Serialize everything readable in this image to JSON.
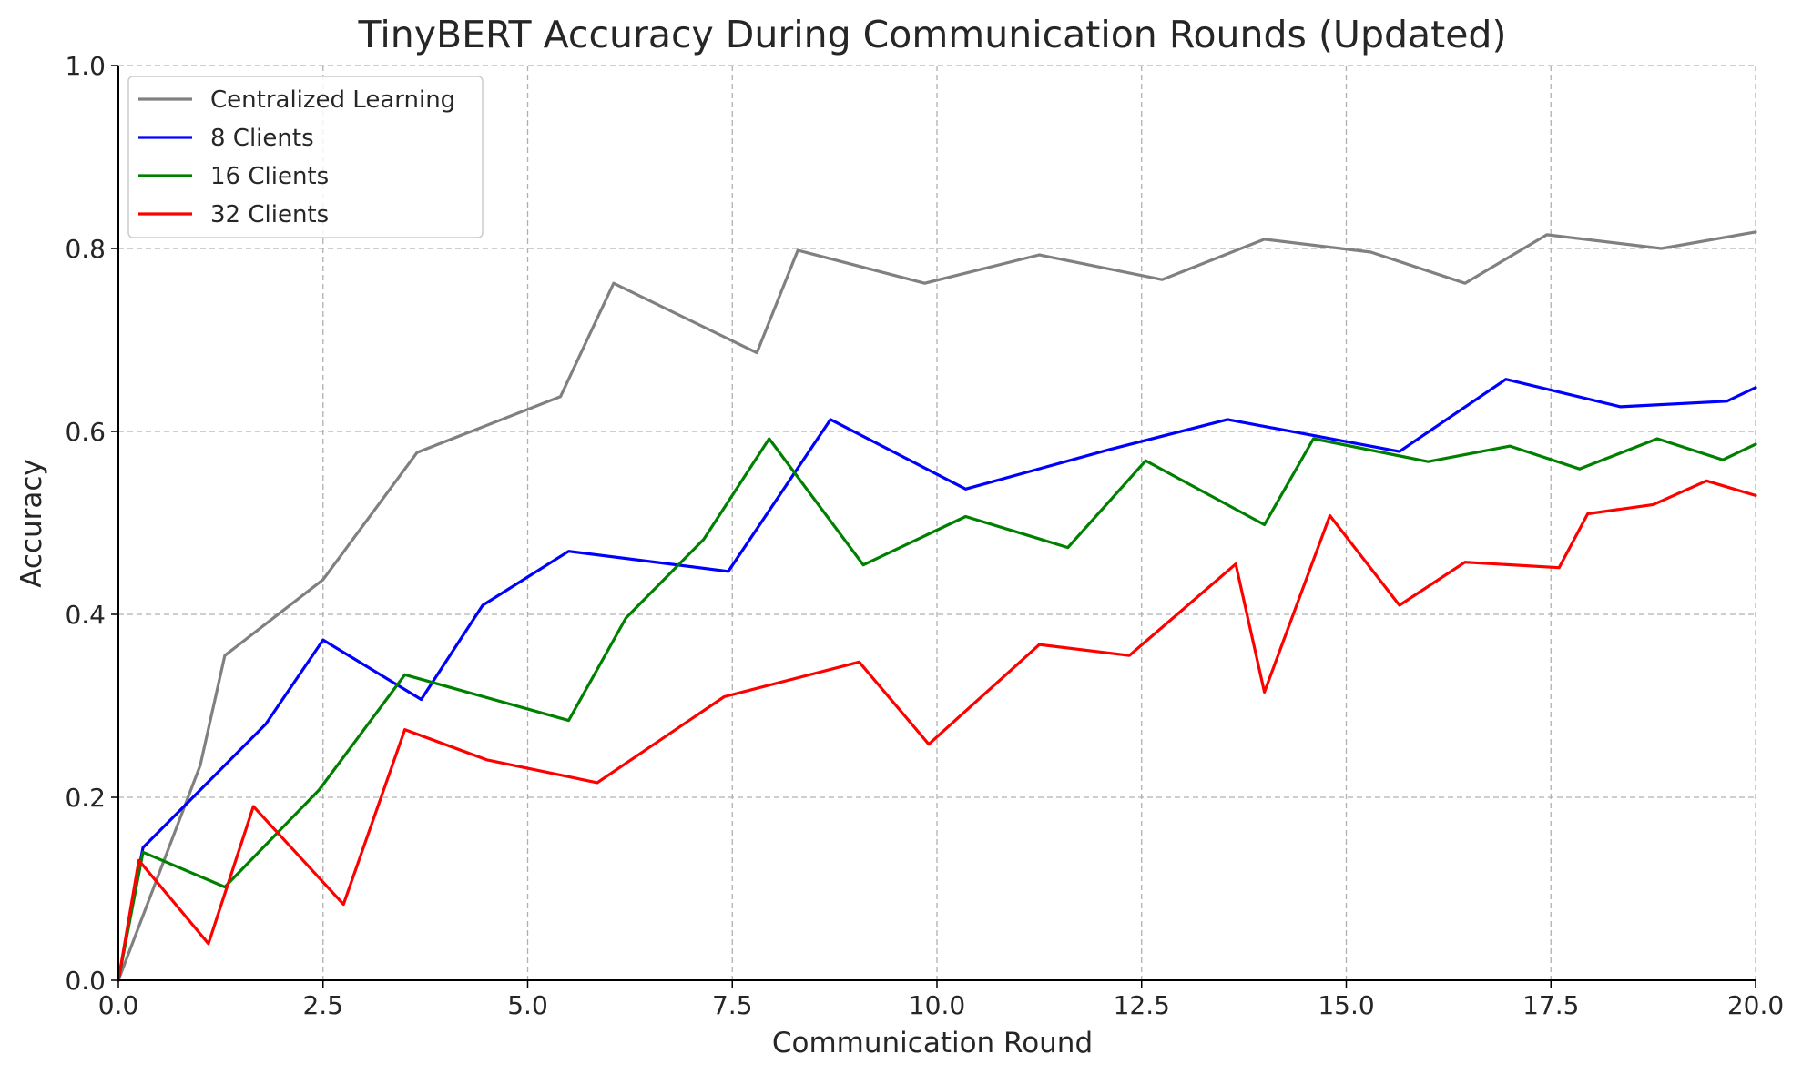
{
  "chart_data": {
    "type": "line",
    "title": "TinyBERT Accuracy During Communication Rounds (Updated)",
    "xlabel": "Communication Round",
    "ylabel": "Accuracy",
    "xlim": [
      0,
      20
    ],
    "ylim": [
      0,
      1
    ],
    "xticks": [
      0,
      2.5,
      5,
      7.5,
      10,
      12.5,
      15,
      17.5,
      20
    ],
    "xtick_labels": [
      "0.0",
      "2.5",
      "5.0",
      "7.5",
      "10.0",
      "12.5",
      "15.0",
      "17.5",
      "20.0"
    ],
    "yticks": [
      0,
      0.2,
      0.4,
      0.6,
      0.8,
      1.0
    ],
    "ytick_labels": [
      "0.0",
      "0.2",
      "0.4",
      "0.6",
      "0.8",
      "1.0"
    ],
    "grid": true,
    "legend_position": "top-left",
    "series": [
      {
        "name": "Centralized Learning",
        "color": "#808080",
        "points": [
          [
            0,
            0
          ],
          [
            1,
            0.235
          ],
          [
            1.3,
            0.355
          ],
          [
            2.5,
            0.438
          ],
          [
            3.65,
            0.577
          ],
          [
            5.4,
            0.638
          ],
          [
            6.05,
            0.762
          ],
          [
            7.8,
            0.686
          ],
          [
            8.3,
            0.798
          ],
          [
            9.85,
            0.762
          ],
          [
            11.25,
            0.793
          ],
          [
            12.75,
            0.766
          ],
          [
            14.0,
            0.81
          ],
          [
            15.3,
            0.796
          ],
          [
            16.45,
            0.762
          ],
          [
            17.45,
            0.815
          ],
          [
            18.85,
            0.8
          ],
          [
            20,
            0.818
          ]
        ]
      },
      {
        "name": "8 Clients",
        "color": "#0000ff",
        "points": [
          [
            0,
            0
          ],
          [
            0.3,
            0.145
          ],
          [
            1.8,
            0.28
          ],
          [
            2.5,
            0.372
          ],
          [
            3.7,
            0.307
          ],
          [
            4.45,
            0.41
          ],
          [
            5.5,
            0.469
          ],
          [
            7.45,
            0.447
          ],
          [
            8.7,
            0.613
          ],
          [
            10.35,
            0.537
          ],
          [
            12.1,
            0.58
          ],
          [
            13.55,
            0.613
          ],
          [
            15.65,
            0.578
          ],
          [
            16.95,
            0.657
          ],
          [
            18.35,
            0.627
          ],
          [
            19.65,
            0.633
          ],
          [
            20,
            0.648
          ]
        ]
      },
      {
        "name": "16 Clients",
        "color": "#008000",
        "points": [
          [
            0,
            0
          ],
          [
            0.3,
            0.14
          ],
          [
            1.3,
            0.102
          ],
          [
            2.45,
            0.208
          ],
          [
            3.5,
            0.334
          ],
          [
            5.5,
            0.284
          ],
          [
            6.2,
            0.396
          ],
          [
            7.15,
            0.482
          ],
          [
            7.95,
            0.592
          ],
          [
            9.1,
            0.454
          ],
          [
            10.35,
            0.507
          ],
          [
            11.6,
            0.473
          ],
          [
            12.55,
            0.568
          ],
          [
            14.0,
            0.498
          ],
          [
            14.6,
            0.592
          ],
          [
            16.0,
            0.567
          ],
          [
            17.0,
            0.584
          ],
          [
            17.85,
            0.559
          ],
          [
            18.8,
            0.592
          ],
          [
            19.6,
            0.569
          ],
          [
            20,
            0.586
          ]
        ]
      },
      {
        "name": "32 Clients",
        "color": "#ff0000",
        "points": [
          [
            0,
            0
          ],
          [
            0.25,
            0.131
          ],
          [
            1.1,
            0.04
          ],
          [
            1.65,
            0.19
          ],
          [
            2.75,
            0.083
          ],
          [
            3.5,
            0.274
          ],
          [
            4.5,
            0.241
          ],
          [
            5.85,
            0.216
          ],
          [
            7.4,
            0.31
          ],
          [
            9.05,
            0.348
          ],
          [
            9.9,
            0.258
          ],
          [
            11.25,
            0.367
          ],
          [
            12.35,
            0.355
          ],
          [
            13.65,
            0.455
          ],
          [
            14.0,
            0.315
          ],
          [
            14.8,
            0.508
          ],
          [
            15.65,
            0.41
          ],
          [
            16.45,
            0.457
          ],
          [
            17.6,
            0.451
          ],
          [
            17.95,
            0.51
          ],
          [
            18.75,
            0.52
          ],
          [
            19.4,
            0.546
          ],
          [
            20,
            0.53
          ]
        ]
      }
    ]
  }
}
